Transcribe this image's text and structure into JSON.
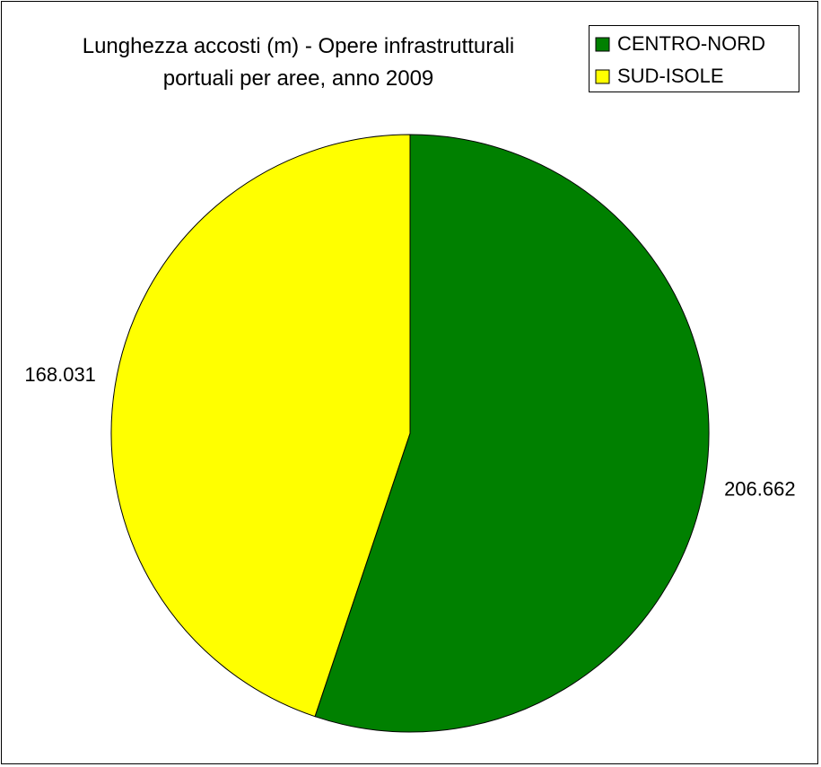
{
  "chart_data": {
    "type": "pie",
    "title": "Lunghezza accosti (m) - Opere infrastrutturali portuali per aree, anno 2009",
    "categories": [
      "CENTRO-NORD",
      "SUD-ISOLE"
    ],
    "values": [
      206662,
      168031
    ],
    "value_labels": [
      "206.662",
      "168.031"
    ],
    "colors": [
      "#008000",
      "#ffff00"
    ],
    "legend": "top-right"
  }
}
